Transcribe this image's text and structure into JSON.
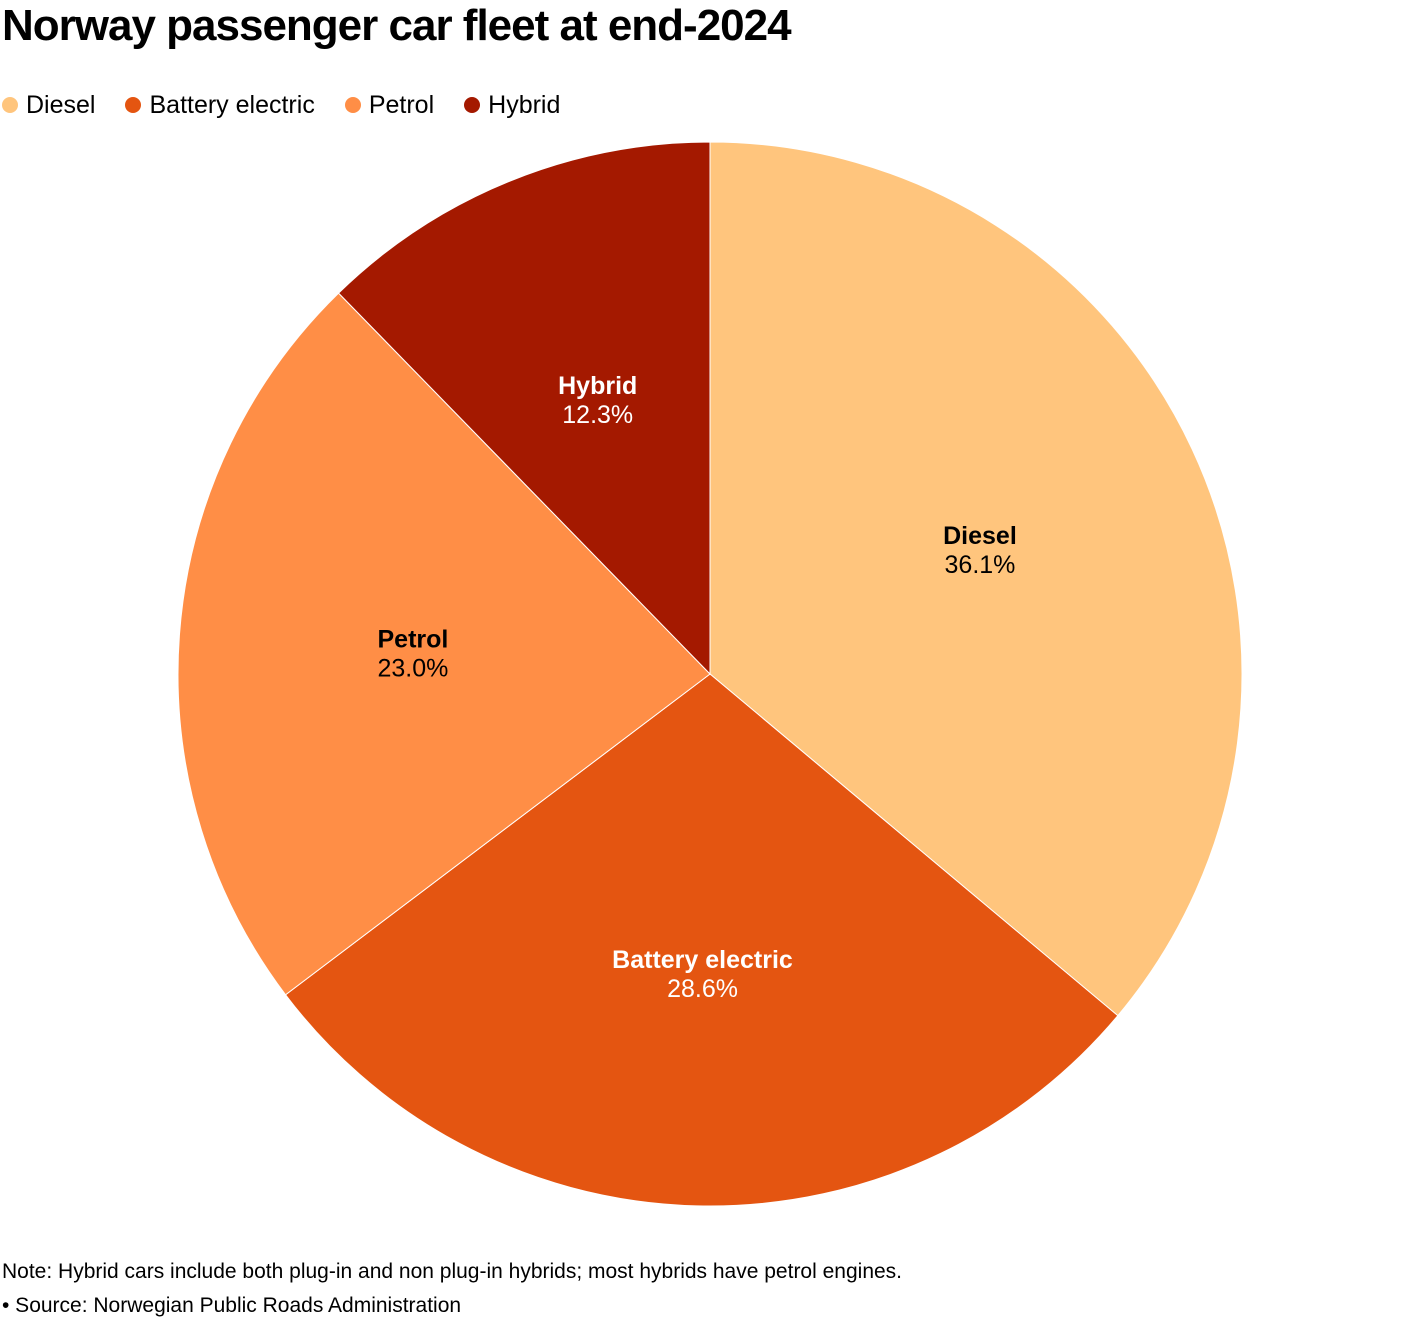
{
  "chart_data": {
    "type": "pie",
    "title": "Norway passenger car fleet at end-2024",
    "legend_position": "top-left",
    "slices": [
      {
        "label": "Diesel",
        "value": 36.1,
        "value_label": "36.1%",
        "color": "#FFC57D",
        "text_color": "#000000"
      },
      {
        "label": "Battery electric",
        "value": 28.6,
        "value_label": "28.6%",
        "color": "#E45511",
        "text_color": "#FFFFFF"
      },
      {
        "label": "Petrol",
        "value": 23.0,
        "value_label": "23.0%",
        "color": "#FF8E46",
        "text_color": "#000000"
      },
      {
        "label": "Hybrid",
        "value": 12.3,
        "value_label": "12.3%",
        "color": "#A41900",
        "text_color": "#FFFFFF"
      }
    ]
  },
  "note": "Note: Hybrid cars include both plug-in and non plug-in hybrids; most hybrids have petrol engines.",
  "source": "• Source: Norwegian Public Roads Administration"
}
